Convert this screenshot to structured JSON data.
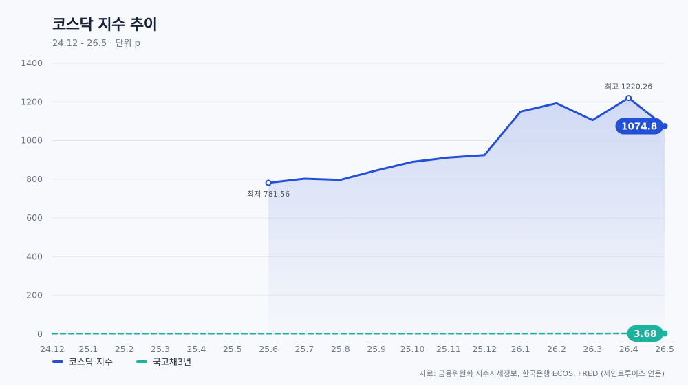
{
  "header": {
    "title": "코스닥 지수 추이",
    "subtitle": "24.12 - 26.5 · 단위 p"
  },
  "source": "자료: 금융위원회 지수시세정보, 한국은행 ECOS, FRED (세인트루이스 연은)",
  "colors": {
    "kosdaq": "#2350d8",
    "bond": "#1bb3a0",
    "grid": "#e3e7ee",
    "axis_text": "#6b7689",
    "fill_top": "#c9d4f3"
  },
  "chart_data": {
    "type": "line",
    "title": "코스닥 지수 추이",
    "xlabel": "",
    "ylabel": "",
    "categories": [
      "24.12",
      "25.1",
      "25.2",
      "25.3",
      "25.4",
      "25.5",
      "25.6",
      "25.7",
      "25.8",
      "25.9",
      "25.10",
      "25.11",
      "25.12",
      "26.1",
      "26.2",
      "26.3",
      "26.4",
      "26.5"
    ],
    "ylim": [
      0,
      1400
    ],
    "yticks": [
      0,
      200,
      400,
      600,
      800,
      1000,
      1200,
      1400
    ],
    "grid": true,
    "legend_position": "bottom-left",
    "series": [
      {
        "name": "코스닥 지수",
        "color": "#2350d8",
        "area": true,
        "values": [
          null,
          null,
          null,
          null,
          null,
          null,
          781.56,
          803,
          797,
          846,
          890,
          912,
          925,
          1150,
          1193,
          1106,
          1220.26,
          1074.8
        ],
        "end_label": "1074.8"
      },
      {
        "name": "국고채3년",
        "color": "#1bb3a0",
        "dashed": true,
        "values": [
          2.6,
          2.7,
          2.65,
          2.6,
          2.5,
          2.4,
          2.45,
          2.5,
          2.45,
          2.5,
          2.55,
          2.6,
          2.7,
          2.9,
          3.1,
          3.3,
          3.5,
          3.68
        ],
        "end_label": "3.68"
      }
    ],
    "annotations": [
      {
        "label": "최저 781.56",
        "series": 0,
        "index": 6,
        "placement": "below"
      },
      {
        "label": "최고 1220.26",
        "series": 0,
        "index": 16,
        "placement": "above"
      }
    ]
  }
}
